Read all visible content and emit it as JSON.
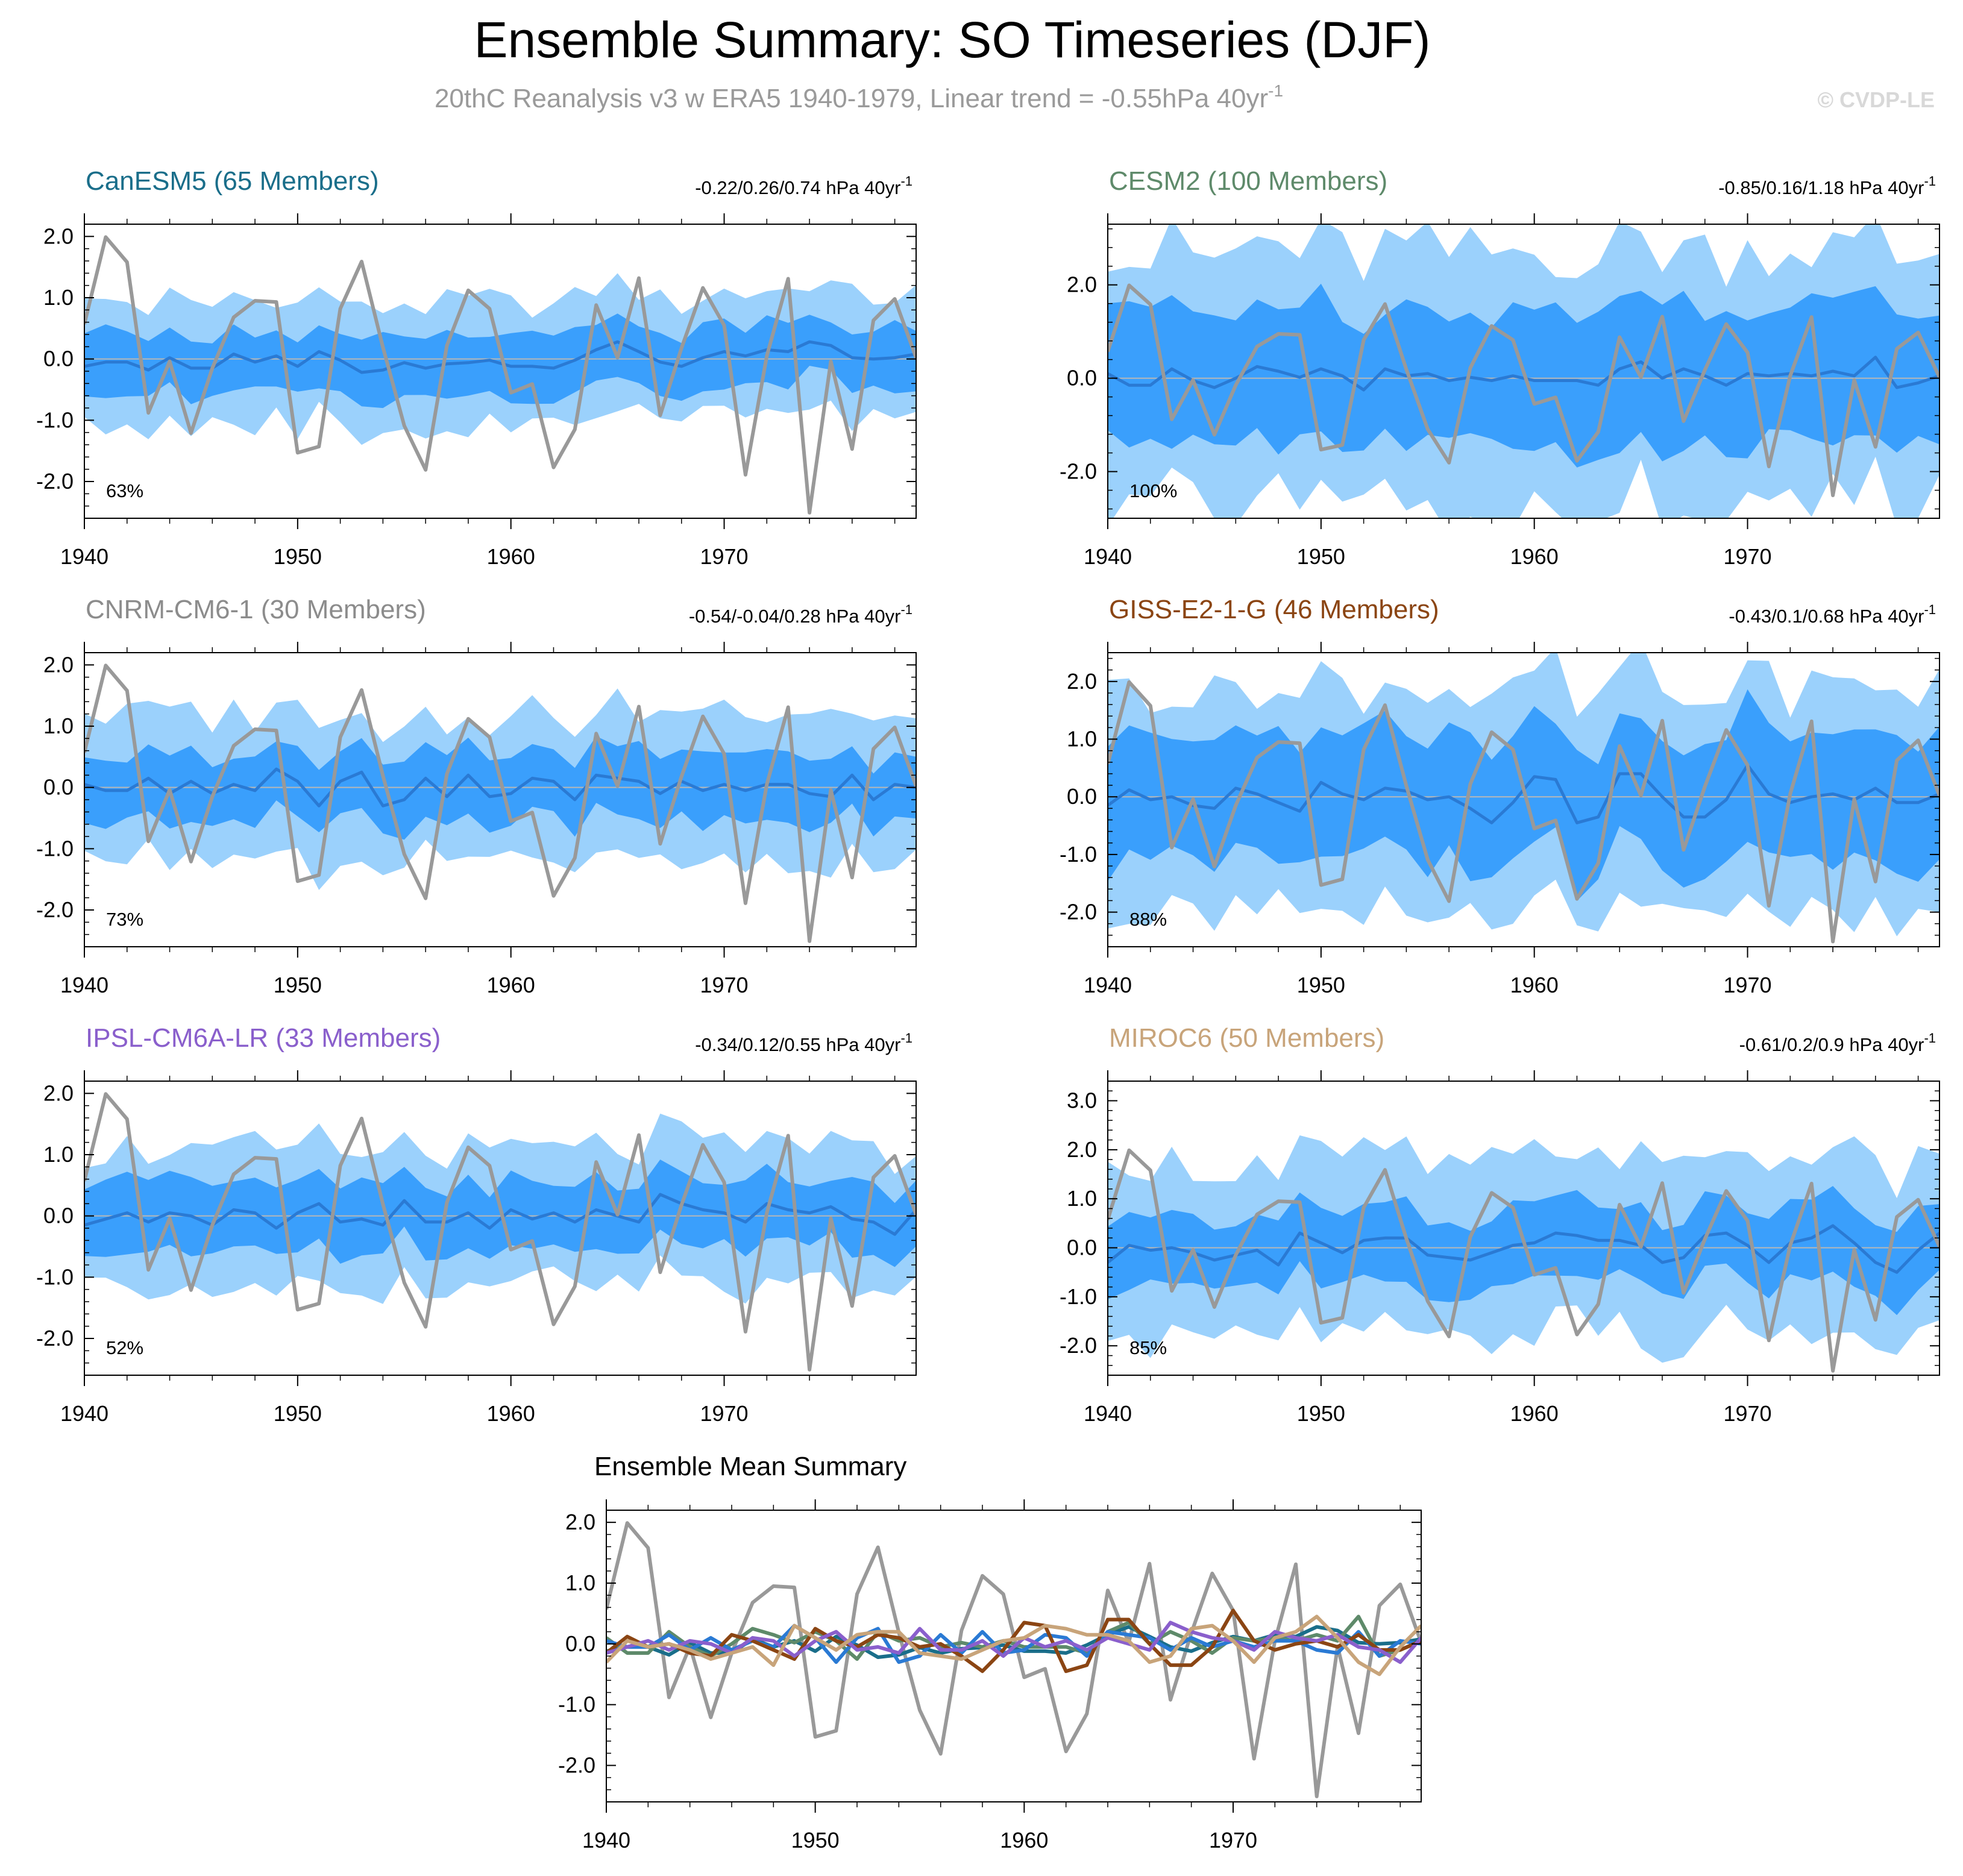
{
  "title": "Ensemble Summary: SO Timeseries (DJF)",
  "subtitle": "20thC Reanalysis v3 w ERA5 1940-1979, Linear trend = -0.55hPa 40yr",
  "subtitle_superscript": "-1",
  "watermark": "© CVDP-LE",
  "summary_title": "Ensemble Mean Summary",
  "colors": {
    "outer_band": "#9bd1fc",
    "inner_band": "#3a9ffc",
    "ensemble_mean": "#2a7ad4",
    "observations": "#999999",
    "zero_line": "#b7b7b7"
  },
  "chart_data": {
    "type": "line",
    "x": [
      1940,
      1941,
      1942,
      1943,
      1944,
      1945,
      1946,
      1947,
      1948,
      1949,
      1950,
      1951,
      1952,
      1953,
      1954,
      1955,
      1956,
      1957,
      1958,
      1959,
      1960,
      1961,
      1962,
      1963,
      1964,
      1965,
      1966,
      1967,
      1968,
      1969,
      1970,
      1971,
      1972,
      1973,
      1974,
      1975,
      1976,
      1977,
      1978,
      1979
    ],
    "x_ticks": [
      1940,
      1950,
      1960,
      1970
    ],
    "observations": [
      0.57,
      1.99,
      1.58,
      -0.88,
      -0.04,
      -1.21,
      -0.15,
      0.68,
      0.95,
      0.93,
      -1.53,
      -1.43,
      0.82,
      1.59,
      0.19,
      -1.09,
      -1.81,
      0.22,
      1.12,
      0.82,
      -0.55,
      -0.41,
      -1.77,
      -1.15,
      0.88,
      0.02,
      1.32,
      -0.92,
      0.18,
      1.16,
      0.55,
      -1.89,
      0.05,
      1.31,
      -2.51,
      -0.04,
      -1.47,
      0.63,
      0.98,
      0.02
    ],
    "panels": [
      {
        "model": "CanESM5",
        "members": 65,
        "title": "CanESM5 (65 Members)",
        "title_color": "#1a6e8a",
        "trend_label": "-0.22/0.26/0.74 hPa 40yr",
        "trend_superscript": "-1",
        "percent": "63%",
        "ylim": [
          -2.6,
          2.2
        ],
        "y_ticks": [
          2.0,
          1.0,
          0.0,
          -1.0,
          -2.0
        ],
        "y_tick_labels": [
          "2.0",
          "1.0",
          "0.0",
          "-1.0",
          "-2.0"
        ],
        "mean": [
          -0.12,
          -0.05,
          -0.05,
          -0.18,
          0.02,
          -0.15,
          -0.15,
          0.08,
          -0.05,
          0.05,
          -0.12,
          0.12,
          -0.02,
          -0.22,
          -0.18,
          -0.06,
          -0.15,
          -0.08,
          -0.06,
          -0.02,
          -0.12,
          -0.12,
          -0.15,
          -0.02,
          0.15,
          0.28,
          0.12,
          -0.05,
          -0.12,
          0.02,
          0.12,
          0.05,
          0.15,
          0.12,
          0.28,
          0.22,
          0.02,
          0.0,
          0.02,
          0.08
        ],
        "inner_spread": 0.5,
        "outer_spread": 1.0,
        "ensemble_mean_color": "#1a6e8a"
      },
      {
        "model": "CESM2",
        "members": 100,
        "title": "CESM2 (100 Members)",
        "title_color": "#5e8a6a",
        "trend_label": "-0.85/0.16/1.18 hPa 40yr",
        "trend_superscript": "-1",
        "percent": "100%",
        "ylim": [
          -3.0,
          3.3
        ],
        "y_ticks": [
          2.0,
          0.0,
          -2.0
        ],
        "y_tick_labels": [
          "2.0",
          "0.0",
          "-2.0"
        ],
        "mean": [
          0.1,
          -0.15,
          -0.15,
          0.2,
          -0.05,
          -0.2,
          0.0,
          0.25,
          0.15,
          0.02,
          0.2,
          0.05,
          -0.25,
          0.2,
          0.05,
          0.1,
          -0.05,
          0.02,
          -0.05,
          0.05,
          -0.05,
          -0.05,
          -0.05,
          -0.15,
          0.2,
          0.35,
          0.0,
          0.2,
          0.05,
          -0.15,
          0.1,
          0.05,
          0.1,
          0.05,
          0.15,
          0.05,
          0.45,
          -0.2,
          -0.1,
          0.05
        ],
        "inner_spread": 1.5,
        "outer_spread": 2.7,
        "ensemble_mean_color": "#5e8a6a"
      },
      {
        "model": "CNRM-CM6-1",
        "members": 30,
        "title": "CNRM-CM6-1 (30 Members)",
        "title_color": "#8c8c8c",
        "trend_label": "-0.54/-0.04/0.28 hPa 40yr",
        "trend_superscript": "-1",
        "percent": "73%",
        "ylim": [
          -2.6,
          2.2
        ],
        "y_ticks": [
          2.0,
          1.0,
          0.0,
          -1.0,
          -2.0
        ],
        "y_tick_labels": [
          "2.0",
          "1.0",
          "0.0",
          "-1.0",
          "-2.0"
        ],
        "mean": [
          0.05,
          -0.05,
          -0.05,
          0.15,
          -0.1,
          0.1,
          -0.1,
          0.05,
          -0.05,
          0.3,
          0.1,
          -0.3,
          0.1,
          0.25,
          -0.3,
          -0.2,
          0.15,
          -0.15,
          0.2,
          -0.15,
          -0.1,
          0.15,
          0.1,
          -0.2,
          0.2,
          0.15,
          0.1,
          -0.1,
          0.1,
          -0.05,
          0.05,
          -0.05,
          0.05,
          0.05,
          -0.1,
          -0.15,
          0.2,
          -0.2,
          0.05,
          0.0
        ],
        "inner_spread": 0.55,
        "outer_spread": 1.2,
        "ensemble_mean_color": "#2a7ad4"
      },
      {
        "model": "GISS-E2-1-G",
        "members": 46,
        "title": "GISS-E2-1-G (46 Members)",
        "title_color": "#8b4513",
        "trend_label": "-0.43/0.1/0.68 hPa 40yr",
        "trend_superscript": "-1",
        "percent": "88%",
        "ylim": [
          -2.6,
          2.5
        ],
        "y_ticks": [
          2.0,
          1.0,
          0.0,
          -1.0,
          -2.0
        ],
        "y_tick_labels": [
          "2.0",
          "1.0",
          "0.0",
          "-1.0",
          "-2.0"
        ],
        "mean": [
          -0.15,
          0.12,
          -0.05,
          0.0,
          -0.15,
          -0.2,
          0.15,
          0.05,
          -0.1,
          -0.25,
          0.25,
          0.05,
          -0.05,
          0.15,
          0.1,
          -0.05,
          0.0,
          -0.2,
          -0.45,
          -0.1,
          0.35,
          0.3,
          -0.45,
          -0.35,
          0.4,
          0.4,
          0.0,
          -0.35,
          -0.35,
          -0.05,
          0.55,
          0.05,
          -0.1,
          0.0,
          0.05,
          -0.05,
          0.15,
          -0.1,
          -0.1,
          0.05
        ],
        "inner_spread": 1.1,
        "outer_spread": 1.9,
        "ensemble_mean_color": "#8b4513"
      },
      {
        "model": "IPSL-CM6A-LR",
        "members": 33,
        "title": "IPSL-CM6A-LR (33 Members)",
        "title_color": "#8a5fcc",
        "trend_label": "-0.34/0.12/0.55 hPa 40yr",
        "trend_superscript": "-1",
        "percent": "52%",
        "ylim": [
          -2.6,
          2.2
        ],
        "y_ticks": [
          2.0,
          1.0,
          0.0,
          -1.0,
          -2.0
        ],
        "y_tick_labels": [
          "2.0",
          "1.0",
          "0.0",
          "-1.0",
          "-2.0"
        ],
        "mean": [
          -0.15,
          -0.05,
          0.05,
          -0.1,
          0.05,
          0.0,
          -0.15,
          0.1,
          0.05,
          -0.2,
          0.05,
          0.2,
          -0.1,
          -0.05,
          -0.15,
          0.25,
          -0.1,
          -0.1,
          0.05,
          -0.2,
          0.1,
          -0.05,
          0.05,
          -0.1,
          0.1,
          0.0,
          -0.1,
          0.35,
          0.2,
          0.1,
          0.05,
          -0.1,
          0.2,
          0.1,
          0.05,
          0.15,
          -0.05,
          -0.1,
          -0.3,
          0.1
        ],
        "inner_spread": 0.55,
        "outer_spread": 1.1,
        "ensemble_mean_color": "#8a5fcc"
      },
      {
        "model": "MIROC6",
        "members": 50,
        "title": "MIROC6 (50 Members)",
        "title_color": "#c8a47a",
        "trend_label": "-0.61/0.2/0.9 hPa 40yr",
        "trend_superscript": "-1",
        "percent": "85%",
        "ylim": [
          -2.6,
          3.4
        ],
        "y_ticks": [
          3.0,
          2.0,
          1.0,
          0.0,
          -1.0,
          -2.0
        ],
        "y_tick_labels": [
          "3.0",
          "2.0",
          "1.0",
          "0.0",
          "-1.0",
          "-2.0"
        ],
        "mean": [
          -0.3,
          0.05,
          -0.05,
          0.0,
          -0.1,
          -0.25,
          -0.15,
          -0.05,
          -0.35,
          0.3,
          0.1,
          -0.1,
          0.15,
          0.2,
          0.2,
          -0.15,
          -0.2,
          -0.25,
          -0.1,
          0.05,
          0.1,
          0.3,
          0.25,
          0.15,
          0.15,
          0.05,
          -0.3,
          -0.2,
          0.25,
          0.3,
          0.05,
          -0.3,
          0.1,
          0.2,
          0.45,
          0.1,
          -0.3,
          -0.5,
          -0.05,
          0.3
        ],
        "inner_spread": 0.75,
        "outer_spread": 1.8,
        "ensemble_mean_color": "#c8a47a"
      }
    ],
    "summary": {
      "title": "Ensemble Mean Summary",
      "ylim": [
        -2.6,
        2.2
      ],
      "y_ticks": [
        2.0,
        1.0,
        0.0,
        -1.0,
        -2.0
      ],
      "y_tick_labels": [
        "2.0",
        "1.0",
        "0.0",
        "-1.0",
        "-2.0"
      ]
    }
  }
}
